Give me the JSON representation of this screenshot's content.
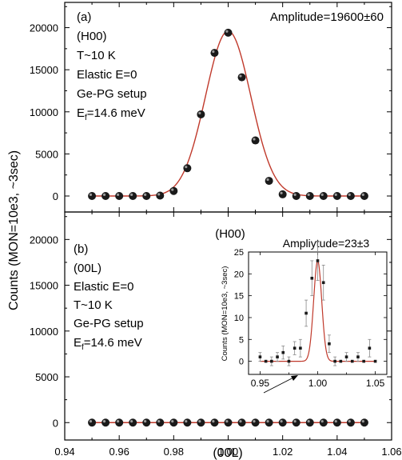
{
  "chart_data": [
    {
      "type": "scatter",
      "panel_label": "(a)",
      "amplitude_text": "Amplitude=19600±60",
      "annotation_lines": [
        "(H00)",
        "T~10 K",
        "Elastic E=0",
        "Ge-PG setup"
      ],
      "ef_text": {
        "base": "E",
        "sub": "f",
        "rest": "=14.6 meV"
      },
      "xlim": [
        0.94,
        1.06
      ],
      "ylim": [
        -1900,
        23000
      ],
      "ytick_values": [
        0,
        5000,
        10000,
        15000,
        20000
      ],
      "ytick_labels": [
        "0",
        "5000",
        "10000",
        "15000",
        "20000"
      ],
      "x": [
        0.95,
        0.955,
        0.96,
        0.965,
        0.97,
        0.975,
        0.98,
        0.985,
        0.99,
        0.995,
        1.0,
        1.005,
        1.01,
        1.015,
        1.02,
        1.025,
        1.03,
        1.035,
        1.04,
        1.045,
        1.05
      ],
      "y": [
        0,
        0,
        0,
        0,
        0,
        50,
        600,
        3300,
        9700,
        17000,
        19400,
        14100,
        6600,
        1800,
        200,
        0,
        0,
        0,
        0,
        0,
        0
      ],
      "fit": {
        "type": "gaussian",
        "center": 1.0,
        "sigma": 0.0083,
        "amplitude": 19600,
        "offset": 0,
        "color": "#c0392b"
      },
      "marker_color": "#1a1a1a"
    },
    {
      "type": "scatter",
      "panel_label": "(b)",
      "annotation_lines": [
        "(00L)",
        "Elastic E=0",
        "T~10 K",
        "Ge-PG setup"
      ],
      "ef_text": {
        "base": "E",
        "sub": "f",
        "rest": "=14.6 meV"
      },
      "xlabel": "(00L)",
      "xlim": [
        0.94,
        1.06
      ],
      "ylim": [
        -1900,
        23000
      ],
      "xtick_values": [
        0.94,
        0.96,
        0.98,
        1.0,
        1.02,
        1.04,
        1.06
      ],
      "xtick_labels": [
        "0.94",
        "0.96",
        "0.98",
        "1.00",
        "1.02",
        "1.04",
        "1.06"
      ],
      "ytick_values": [
        0,
        5000,
        10000,
        15000,
        20000
      ],
      "ytick_labels": [
        "0",
        "5000",
        "10000",
        "15000",
        "20000"
      ],
      "x": [
        0.95,
        0.955,
        0.96,
        0.965,
        0.97,
        0.975,
        0.98,
        0.985,
        0.99,
        0.995,
        1.0,
        1.005,
        1.01,
        1.015,
        1.02,
        1.025,
        1.03,
        1.035,
        1.04,
        1.045,
        1.05
      ],
      "y": [
        0,
        0,
        0,
        0,
        0,
        0,
        0,
        0,
        0,
        0,
        0,
        0,
        0,
        0,
        0,
        0,
        0,
        0,
        0,
        0,
        0
      ],
      "fit_color": "#c0392b",
      "marker_color": "#1a1a1a"
    },
    {
      "type": "scatter",
      "role": "inset",
      "title": "(H00)",
      "amplitude_text": "Ampliytude=23±3",
      "ylabel": "Counts (MON=10e3, ~3sec)",
      "xlim": [
        0.94,
        1.06
      ],
      "ylim": [
        -3,
        25
      ],
      "xtick_values": [
        0.95,
        1.0,
        1.05
      ],
      "xtick_labels": [
        "0.95",
        "1.00",
        "1.05"
      ],
      "ytick_values": [
        0,
        5,
        10,
        15,
        20,
        25
      ],
      "ytick_labels": [
        "0",
        "5",
        "10",
        "15",
        "20",
        "25"
      ],
      "x": [
        0.95,
        0.955,
        0.96,
        0.965,
        0.97,
        0.975,
        0.98,
        0.985,
        0.99,
        0.995,
        1.0,
        1.005,
        1.01,
        1.015,
        1.02,
        1.025,
        1.03,
        1.035,
        1.04,
        1.045,
        1.05
      ],
      "y": [
        1,
        0,
        0,
        1,
        2,
        0,
        3,
        3,
        11,
        19,
        23,
        18,
        4,
        0,
        0,
        1,
        0,
        1,
        0,
        3,
        0
      ],
      "err": [
        1,
        0,
        1,
        1,
        1.5,
        1,
        1.5,
        2,
        3,
        4,
        4.5,
        4,
        2,
        1,
        0,
        1,
        0,
        1,
        0,
        2,
        0
      ],
      "fit": {
        "type": "gaussian",
        "center": 1.0,
        "sigma": 0.0035,
        "amplitude": 23,
        "offset": 0,
        "color": "#c0392b"
      },
      "marker_color": "#1a1a1a"
    }
  ],
  "shared_ylabel": "Counts (MON=10e3, ~3sec)"
}
